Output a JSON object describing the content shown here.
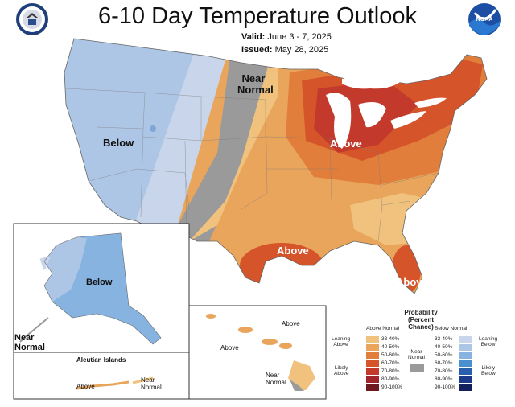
{
  "header": {
    "title": "6-10 Day Temperature Outlook",
    "valid_label": "Valid:",
    "valid_value": "June 3 - 7, 2025",
    "issued_label": "Issued:",
    "issued_value": "May 28, 2025",
    "left_logo": "commerce-seal-icon",
    "right_logo": "noaa-logo-icon",
    "noaa_text": "NOAA"
  },
  "map_labels": {
    "west": "Below",
    "near_normal_line1": "Near",
    "near_normal_line2": "Normal",
    "great_lakes": "Above",
    "texas": "Above",
    "florida": "Above",
    "alaska": "Below",
    "alaska_near_line1": "Near",
    "alaska_near_line2": "Normal",
    "aleutian_title": "Aleutian Islands",
    "aleutian_above": "Above",
    "aleutian_near_line1": "Near",
    "aleutian_near_line2": "Normal",
    "hawaii_above_1": "Above",
    "hawaii_above_2": "Above",
    "hawaii_near_line1": "Near",
    "hawaii_near_line2": "Normal"
  },
  "legend": {
    "title_line1": "Probability",
    "title_line2": "(Percent Chance)",
    "above_header": "Above Normal",
    "below_header": "Below Normal",
    "leaning_above_1": "Leaning",
    "leaning_above_2": "Above",
    "likely_above_1": "Likely",
    "likely_above_2": "Above",
    "leaning_below_1": "Leaning",
    "leaning_below_2": "Below",
    "likely_below_1": "Likely",
    "likely_below_2": "Below",
    "near_normal_1": "Near",
    "near_normal_2": "Normal",
    "ranges": [
      "33-40%",
      "40-50%",
      "50-60%",
      "60-70%",
      "70-80%",
      "80-90%",
      "90-100%"
    ],
    "above_colors": [
      "#f1c27d",
      "#e9a55b",
      "#e27e3b",
      "#d5542a",
      "#c33a2c",
      "#a0252b",
      "#6e1820"
    ],
    "below_colors": [
      "#c9d5ea",
      "#aec6e6",
      "#86b3e0",
      "#4a8fd0",
      "#2a5fae",
      "#1d3a8a",
      "#14205e"
    ],
    "near_normal_color": "#9a9a9a"
  }
}
